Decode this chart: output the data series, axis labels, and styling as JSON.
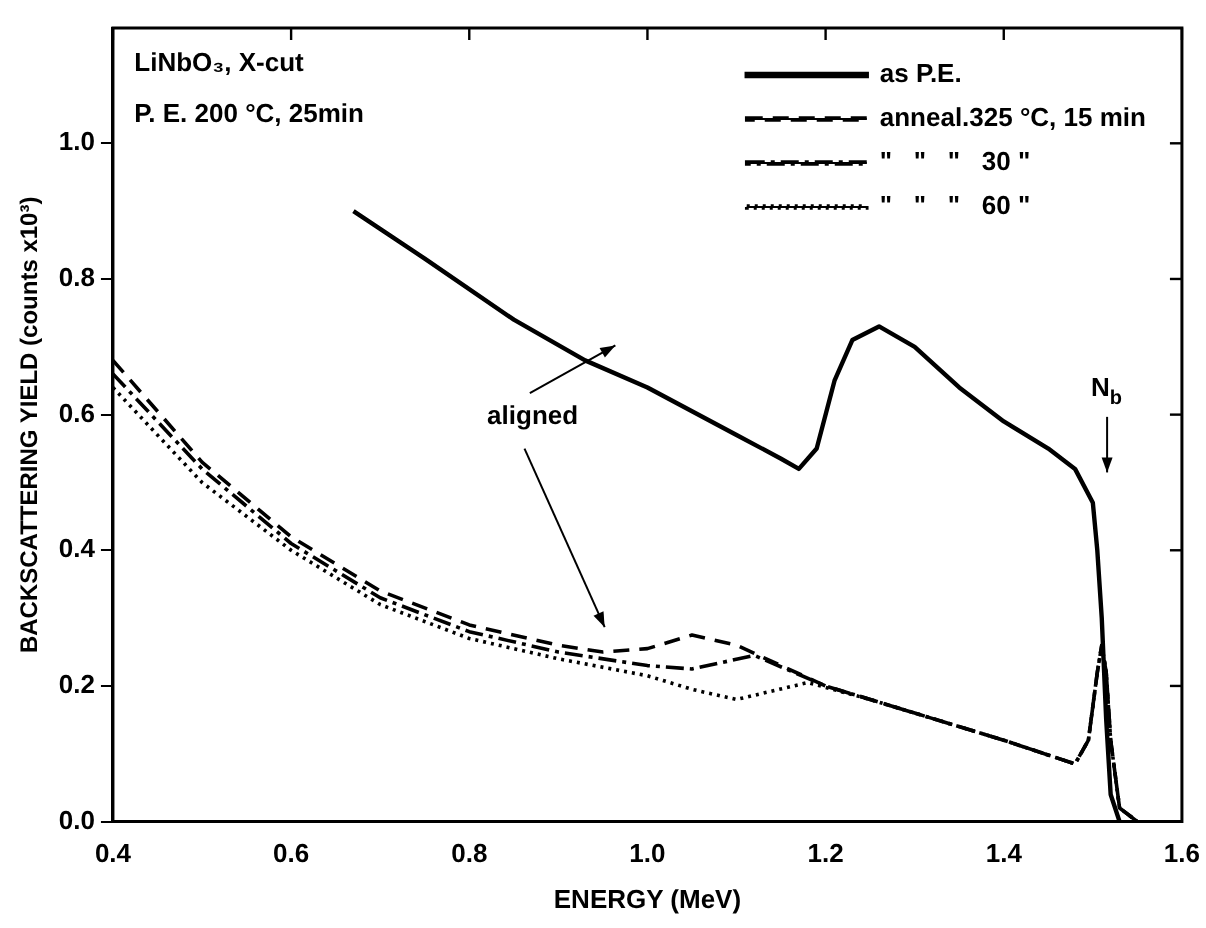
{
  "chart_data": {
    "type": "line",
    "xlabel": "ENERGY (MeV)",
    "ylabel": "BACKSCATTERING YIELD (counts x10³)",
    "xlim": [
      0.4,
      1.6
    ],
    "xticks": [
      0.4,
      0.6,
      0.8,
      {
        "value": 1.0,
        "label": "1.0"
      },
      1.2,
      1.4,
      1.6
    ],
    "ylim": [
      0,
      1.17
    ],
    "yticks": [
      {
        "value": 0,
        "label": "0.0"
      },
      {
        "value": 0.2,
        "label": "0.2"
      },
      {
        "value": 0.4,
        "label": "0.4"
      },
      {
        "value": 0.6,
        "label": "0.6"
      },
      {
        "value": 0.8,
        "label": "0.8"
      },
      {
        "value": 1.0,
        "label": "1.0"
      }
    ],
    "grid": false,
    "legend": "top right",
    "marker": "none",
    "series": [
      {
        "name": "as P.E.",
        "color": "#000000",
        "line_style": "solid",
        "x": [
          0.67,
          0.75,
          0.85,
          0.93,
          1.0,
          1.1,
          1.15,
          1.17,
          1.19,
          1.21,
          1.23,
          1.26,
          1.3,
          1.35,
          1.4,
          1.45,
          1.48,
          1.5,
          1.505,
          1.51,
          1.515,
          1.52,
          1.53
        ],
        "values": [
          0.9,
          0.83,
          0.74,
          0.68,
          0.64,
          0.57,
          0.535,
          0.52,
          0.55,
          0.65,
          0.71,
          0.73,
          0.7,
          0.64,
          0.59,
          0.55,
          0.52,
          0.47,
          0.4,
          0.3,
          0.15,
          0.04,
          0
        ]
      },
      {
        "name": "anneal.325 °C, 15 min",
        "color": "#000000",
        "line_style": "dashed",
        "x": [
          0.4,
          0.5,
          0.6,
          0.7,
          0.8,
          0.9,
          0.95,
          1.0,
          1.05,
          1.1,
          1.15,
          1.2,
          1.3,
          1.4,
          1.48,
          1.495,
          1.505,
          1.51,
          1.515,
          1.52,
          1.53,
          1.55
        ],
        "values": [
          0.68,
          0.53,
          0.42,
          0.34,
          0.29,
          0.26,
          0.25,
          0.255,
          0.275,
          0.26,
          0.23,
          0.2,
          0.16,
          0.12,
          0.085,
          0.12,
          0.22,
          0.26,
          0.22,
          0.12,
          0.02,
          0
        ]
      },
      {
        "name": "\"   \"   \"   30 \"",
        "color": "#000000",
        "line_style": "dashdot",
        "x": [
          0.4,
          0.5,
          0.6,
          0.7,
          0.8,
          0.9,
          1.0,
          1.05,
          1.12,
          1.2,
          1.3,
          1.4,
          1.48,
          1.495,
          1.505,
          1.51,
          1.515,
          1.52,
          1.53,
          1.55
        ],
        "values": [
          0.66,
          0.52,
          0.41,
          0.33,
          0.28,
          0.25,
          0.23,
          0.225,
          0.245,
          0.2,
          0.16,
          0.12,
          0.085,
          0.12,
          0.22,
          0.26,
          0.22,
          0.12,
          0.02,
          0
        ]
      },
      {
        "name": "\"   \"   \"   60 \"",
        "color": "#000000",
        "line_style": "dotted",
        "x": [
          0.4,
          0.5,
          0.6,
          0.7,
          0.8,
          0.9,
          1.0,
          1.05,
          1.1,
          1.18,
          1.25,
          1.3,
          1.4,
          1.48,
          1.495,
          1.505,
          1.51,
          1.515,
          1.52,
          1.53,
          1.55
        ],
        "values": [
          0.64,
          0.5,
          0.4,
          0.32,
          0.27,
          0.24,
          0.215,
          0.195,
          0.18,
          0.205,
          0.18,
          0.16,
          0.12,
          0.085,
          0.12,
          0.22,
          0.26,
          0.22,
          0.12,
          0.02,
          0
        ]
      }
    ],
    "annotations": [
      "LiNbO₃, X-cut",
      "P. E. 200 °C, 25min",
      "aligned",
      "N$_{b}$"
    ]
  }
}
